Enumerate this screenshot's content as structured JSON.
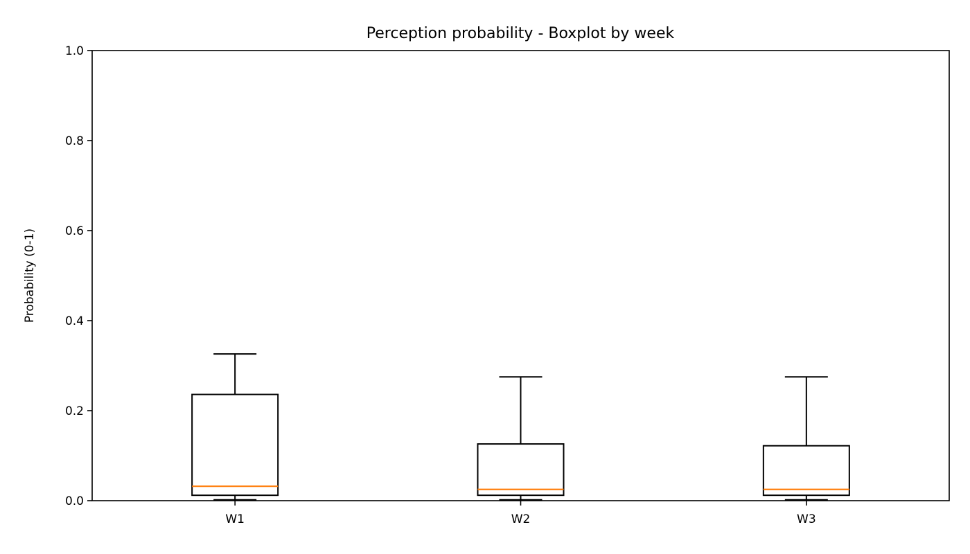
{
  "chart_data": {
    "type": "box",
    "title": "Perception probability - Boxplot by week",
    "xlabel": "",
    "ylabel": "Probability (0-1)",
    "ylim": [
      0,
      1.0
    ],
    "yticks": [
      "0.0",
      "0.2",
      "0.4",
      "0.6",
      "0.8",
      "1.0"
    ],
    "ytick_values": [
      0,
      0.2,
      0.4,
      0.6,
      0.8,
      1.0
    ],
    "categories": [
      "W1",
      "W2",
      "W3"
    ],
    "boxes": [
      {
        "category": "W1",
        "whisker_low": 0.002,
        "q1": 0.012,
        "median": 0.032,
        "q3": 0.236,
        "whisker_high": 0.326
      },
      {
        "category": "W2",
        "whisker_low": 0.002,
        "q1": 0.012,
        "median": 0.025,
        "q3": 0.126,
        "whisker_high": 0.275
      },
      {
        "category": "W3",
        "whisker_low": 0.002,
        "q1": 0.012,
        "median": 0.025,
        "q3": 0.122,
        "whisker_high": 0.275
      }
    ],
    "grid": false,
    "colors": {
      "median": "#ff7f0e",
      "box": "#000000",
      "background": "#ffffff"
    }
  }
}
